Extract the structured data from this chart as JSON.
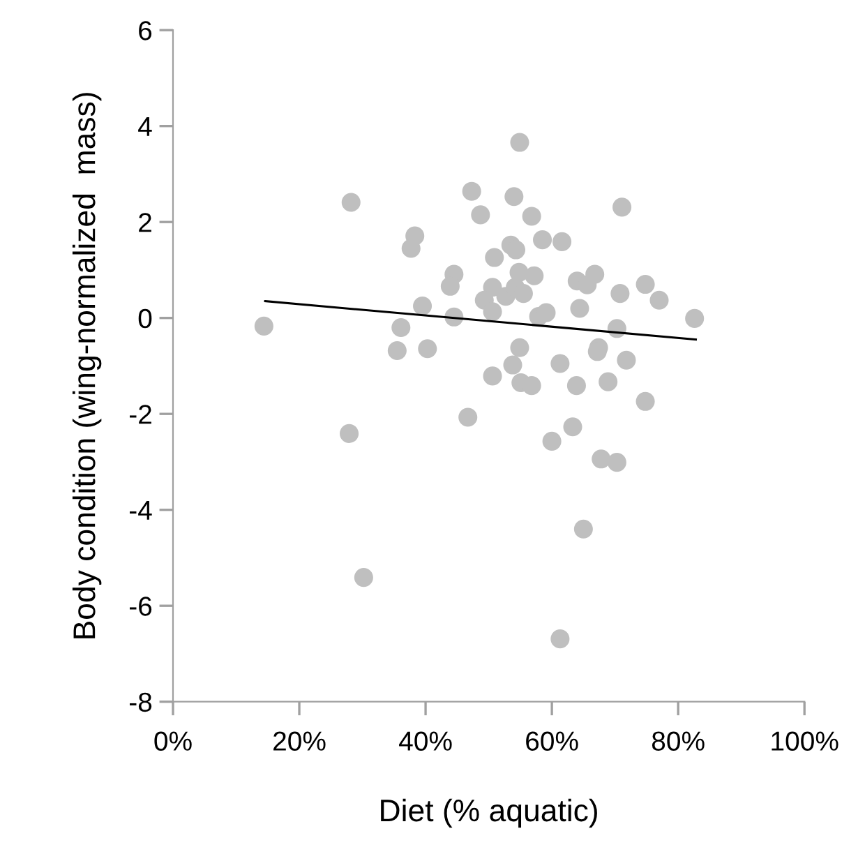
{
  "chart_data": {
    "type": "scatter",
    "xlabel": "Diet (% aquatic)",
    "ylabel": "Body condition (wing-normalized  mass)",
    "xlim": [
      0,
      100
    ],
    "xticks": [
      {
        "value": 0,
        "label": "0%"
      },
      {
        "value": 20,
        "label": "20%"
      },
      {
        "value": 40,
        "label": "40%"
      },
      {
        "value": 60,
        "label": "60%"
      },
      {
        "value": 80,
        "label": "80%"
      },
      {
        "value": 100,
        "label": "100%"
      }
    ],
    "ylim": [
      -8,
      6
    ],
    "yticks": [
      -8,
      -6,
      -4,
      -2,
      0,
      2,
      4,
      6
    ],
    "grid": false,
    "legend": false,
    "marker": "circle",
    "series": [
      {
        "color": "#bfbfbf",
        "x": [
          14.4,
          28.2,
          38.3,
          37.7,
          47.3,
          48.7,
          50.9,
          44.5,
          43.9,
          39.5,
          44.5,
          36.1,
          35.5,
          40.3,
          50.6,
          46.7,
          27.9,
          50.6,
          49.3,
          50.6,
          52.7,
          54.9,
          54.0,
          56.8,
          71.1,
          58.5,
          61.6,
          53.5,
          54.3,
          54.8,
          57.2,
          64.0,
          66.8,
          65.6,
          74.8,
          70.8,
          77.0,
          82.6,
          54.2,
          55.5,
          57.9,
          59.1,
          64.4,
          70.3,
          54.9,
          67.4,
          67.2,
          71.8,
          53.8,
          61.3,
          55.1,
          56.8,
          63.9,
          68.9,
          74.8,
          63.3,
          60.0,
          67.8,
          70.3,
          65.0,
          30.2,
          61.3
        ],
        "values": [
          -0.17,
          2.41,
          1.71,
          1.45,
          2.64,
          2.15,
          1.26,
          0.91,
          0.66,
          0.25,
          0.02,
          -0.2,
          -0.68,
          -0.64,
          -1.21,
          -2.07,
          -2.41,
          0.64,
          0.37,
          0.13,
          0.45,
          3.66,
          2.53,
          2.12,
          2.31,
          1.63,
          1.59,
          1.52,
          1.42,
          0.95,
          0.88,
          0.77,
          0.91,
          0.69,
          0.7,
          0.51,
          0.37,
          -0.01,
          0.64,
          0.51,
          0.03,
          0.11,
          0.2,
          -0.22,
          -0.62,
          -0.62,
          -0.7,
          -0.88,
          -0.98,
          -0.95,
          -1.35,
          -1.41,
          -1.41,
          -1.33,
          -1.74,
          -2.27,
          -2.57,
          -2.94,
          -3.01,
          -4.4,
          -5.41,
          -6.69
        ]
      },
      {
        "type": "line",
        "color": "#000000",
        "x": [
          14.6,
          82.8
        ],
        "values": [
          0.35,
          -0.45
        ],
        "marker": "none",
        "line_style": "solid"
      }
    ]
  }
}
